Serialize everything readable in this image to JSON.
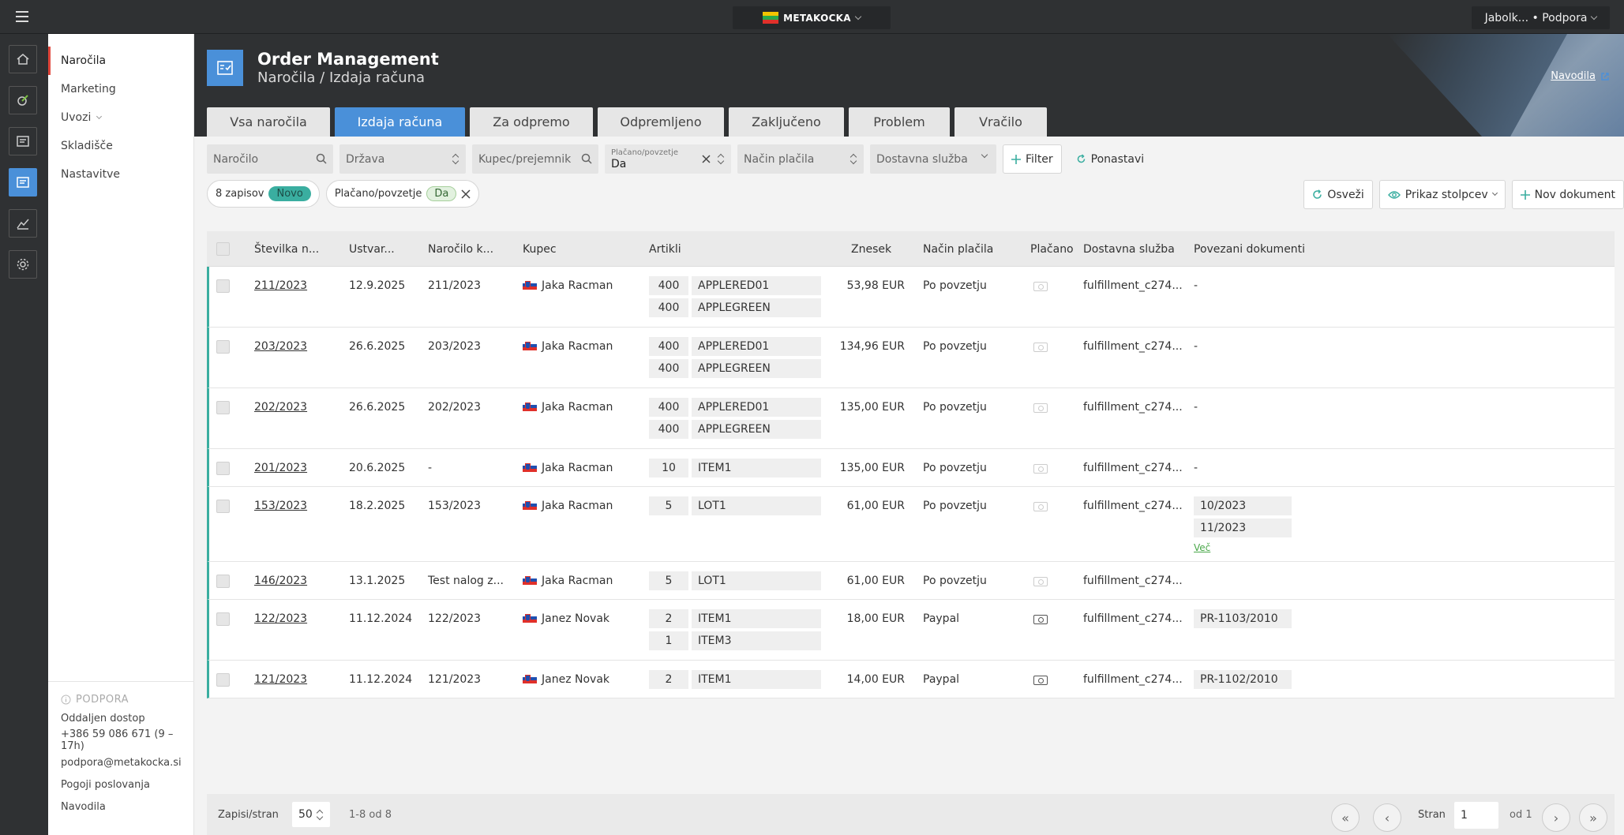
{
  "topbar": {
    "brand": "METAKOCKA",
    "user": "Jabolk... • Podpora"
  },
  "sidebar": {
    "items": [
      {
        "label": "Naročila"
      },
      {
        "label": "Marketing"
      },
      {
        "label": "Uvozi"
      },
      {
        "label": "Skladišče"
      },
      {
        "label": "Nastavitve"
      }
    ],
    "support_header": "PODPORA",
    "support_links": [
      "Oddaljen dostop",
      "+386 59 086 671 (9 – 17h)",
      "podpora@metakocka.si",
      "Pogoji poslovanja",
      "Navodila"
    ]
  },
  "header": {
    "title": "Order Management",
    "subtitle": "Naročila / Izdaja računa",
    "help": "Navodila"
  },
  "tabs": [
    "Vsa naročila",
    "Izdaja računa",
    "Za odpremo",
    "Odpremljeno",
    "Zaključeno",
    "Problem",
    "Vračilo"
  ],
  "filters": {
    "order_placeholder": "Naročilo",
    "country_placeholder": "Država",
    "buyer_placeholder": "Kupec/prejemnik",
    "paid_label": "Plačano/povzetje",
    "paid_value": "Da",
    "payment_placeholder": "Način plačila",
    "delivery_placeholder": "Dostavna služba",
    "filter_btn": "Filter",
    "reset_btn": "Ponastavi"
  },
  "chips": {
    "count": "8 zapisov",
    "count_badge": "Novo",
    "paid": "Plačano/povzetje",
    "paid_badge": "Da"
  },
  "actions": {
    "refresh": "Osveži",
    "columns": "Prikaz stolpcev",
    "new_doc": "Nov dokument"
  },
  "columns": [
    "Številka n...",
    "Ustvar...",
    "Naročilo k...",
    "Kupec",
    "Artikli",
    "Znesek",
    "Način plačila",
    "Plačano",
    "Dostavna služba",
    "Povezani dokumenti"
  ],
  "rows": [
    {
      "num": "211/2023",
      "created": "12.9.2025",
      "order": "211/2023",
      "buyer": "Jaka Racman",
      "items": [
        {
          "q": "400",
          "n": "APPLERED01"
        },
        {
          "q": "400",
          "n": "APPLEGREEN"
        }
      ],
      "amount": "53,98 EUR",
      "payment": "Po povzetju",
      "paid": false,
      "delivery": "fulfillment_c274...",
      "docs_text": "-",
      "docs": [],
      "more": ""
    },
    {
      "num": "203/2023",
      "created": "26.6.2025",
      "order": "203/2023",
      "buyer": "Jaka Racman",
      "items": [
        {
          "q": "400",
          "n": "APPLERED01"
        },
        {
          "q": "400",
          "n": "APPLEGREEN"
        }
      ],
      "amount": "134,96 EUR",
      "payment": "Po povzetju",
      "paid": false,
      "delivery": "fulfillment_c274...",
      "docs_text": "-",
      "docs": [],
      "more": ""
    },
    {
      "num": "202/2023",
      "created": "26.6.2025",
      "order": "202/2023",
      "buyer": "Jaka Racman",
      "items": [
        {
          "q": "400",
          "n": "APPLERED01"
        },
        {
          "q": "400",
          "n": "APPLEGREEN"
        }
      ],
      "amount": "135,00 EUR",
      "payment": "Po povzetju",
      "paid": false,
      "delivery": "fulfillment_c274...",
      "docs_text": "-",
      "docs": [],
      "more": ""
    },
    {
      "num": "201/2023",
      "created": "20.6.2025",
      "order": "-",
      "buyer": "Jaka Racman",
      "items": [
        {
          "q": "10",
          "n": "ITEM1"
        }
      ],
      "amount": "135,00 EUR",
      "payment": "Po povzetju",
      "paid": false,
      "delivery": "fulfillment_c274...",
      "docs_text": "-",
      "docs": [],
      "more": ""
    },
    {
      "num": "153/2023",
      "created": "18.2.2025",
      "order": "153/2023",
      "buyer": "Jaka Racman",
      "items": [
        {
          "q": "5",
          "n": "LOT1"
        }
      ],
      "amount": "61,00 EUR",
      "payment": "Po povzetju",
      "paid": false,
      "delivery": "fulfillment_c274...",
      "docs_text": "",
      "docs": [
        "10/2023",
        "11/2023"
      ],
      "more": "Več"
    },
    {
      "num": "146/2023",
      "created": "13.1.2025",
      "order": "Test nalog z...",
      "buyer": "Jaka Racman",
      "items": [
        {
          "q": "5",
          "n": "LOT1"
        }
      ],
      "amount": "61,00 EUR",
      "payment": "Po povzetju",
      "paid": false,
      "delivery": "fulfillment_c274...",
      "docs_text": "",
      "docs": [],
      "more": ""
    },
    {
      "num": "122/2023",
      "created": "11.12.2024",
      "order": "122/2023",
      "buyer": "Janez Novak",
      "items": [
        {
          "q": "2",
          "n": "ITEM1"
        },
        {
          "q": "1",
          "n": "ITEM3"
        }
      ],
      "amount": "18,00 EUR",
      "payment": "Paypal",
      "paid": true,
      "delivery": "fulfillment_c274...",
      "docs_text": "",
      "docs": [
        "PR-1103/2010"
      ],
      "more": ""
    },
    {
      "num": "121/2023",
      "created": "11.12.2024",
      "order": "121/2023",
      "buyer": "Janez Novak",
      "items": [
        {
          "q": "2",
          "n": "ITEM1"
        }
      ],
      "amount": "14,00 EUR",
      "payment": "Paypal",
      "paid": true,
      "delivery": "fulfillment_c274...",
      "docs_text": "",
      "docs": [
        "PR-1102/2010"
      ],
      "more": ""
    }
  ],
  "pager": {
    "per_page_label": "Zapisi/stran",
    "per_page": "50",
    "range": "1-8 od 8",
    "page_label": "Stran",
    "page": "1",
    "of": "od 1"
  },
  "colors": {
    "accent": "#4a90d9",
    "teal": "#3aaea0",
    "dark": "#2f3133"
  }
}
